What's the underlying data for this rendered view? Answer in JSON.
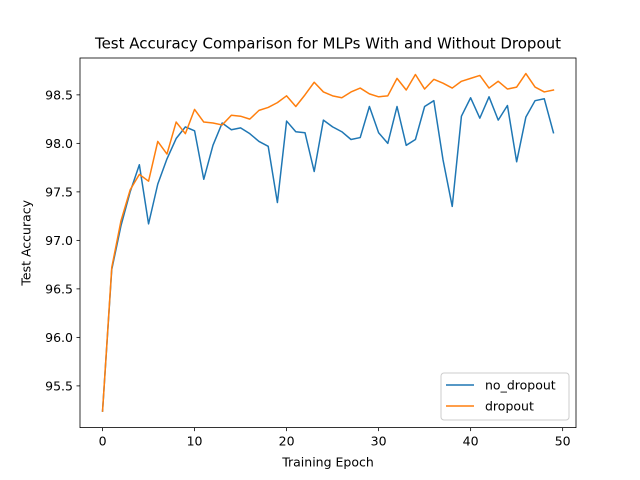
{
  "chart_data": {
    "type": "line",
    "title": "Test Accuracy Comparison for MLPs With and Without Dropout",
    "xlabel": "Training Epoch",
    "ylabel": "Test Accuracy",
    "xlim": [
      -2.45,
      51.45
    ],
    "ylim": [
      95.07,
      98.88
    ],
    "xticks": [
      0,
      10,
      20,
      30,
      40,
      50
    ],
    "yticks": [
      95.5,
      96.0,
      96.5,
      97.0,
      97.5,
      98.0,
      98.5
    ],
    "ytick_labels": [
      "95.5",
      "96.0",
      "96.5",
      "97.0",
      "97.5",
      "98.0",
      "98.5"
    ],
    "grid": false,
    "legend_position": "lower right",
    "x": [
      0,
      1,
      2,
      3,
      4,
      5,
      6,
      7,
      8,
      9,
      10,
      11,
      12,
      13,
      14,
      15,
      16,
      17,
      18,
      19,
      20,
      21,
      22,
      23,
      24,
      25,
      26,
      27,
      28,
      29,
      30,
      31,
      32,
      33,
      34,
      35,
      36,
      37,
      38,
      39,
      40,
      41,
      42,
      43,
      44,
      45,
      46,
      47,
      48,
      49
    ],
    "series": [
      {
        "name": "no_dropout",
        "color": "#1f77b4",
        "values": [
          95.24,
          96.7,
          97.15,
          97.5,
          97.78,
          97.17,
          97.58,
          97.84,
          98.05,
          98.17,
          98.13,
          97.63,
          97.98,
          98.21,
          98.14,
          98.16,
          98.1,
          98.02,
          97.97,
          97.39,
          98.23,
          98.12,
          98.11,
          97.71,
          98.24,
          98.17,
          98.12,
          98.04,
          98.06,
          98.38,
          98.11,
          98.0,
          98.38,
          97.98,
          98.04,
          98.38,
          98.44,
          97.83,
          97.35,
          98.28,
          98.47,
          98.26,
          98.48,
          98.24,
          98.39,
          97.81,
          98.27,
          98.44,
          98.46,
          98.11
        ]
      },
      {
        "name": "dropout",
        "color": "#ff7f0e",
        "values": [
          95.24,
          96.72,
          97.2,
          97.52,
          97.68,
          97.61,
          98.02,
          97.89,
          98.22,
          98.1,
          98.35,
          98.22,
          98.21,
          98.19,
          98.29,
          98.28,
          98.25,
          98.34,
          98.37,
          98.42,
          98.49,
          98.38,
          98.5,
          98.63,
          98.53,
          98.49,
          98.47,
          98.53,
          98.57,
          98.51,
          98.48,
          98.49,
          98.67,
          98.55,
          98.71,
          98.56,
          98.66,
          98.62,
          98.57,
          98.64,
          98.67,
          98.7,
          98.57,
          98.64,
          98.56,
          98.58,
          98.72,
          98.58,
          98.53,
          98.55
        ]
      }
    ]
  }
}
